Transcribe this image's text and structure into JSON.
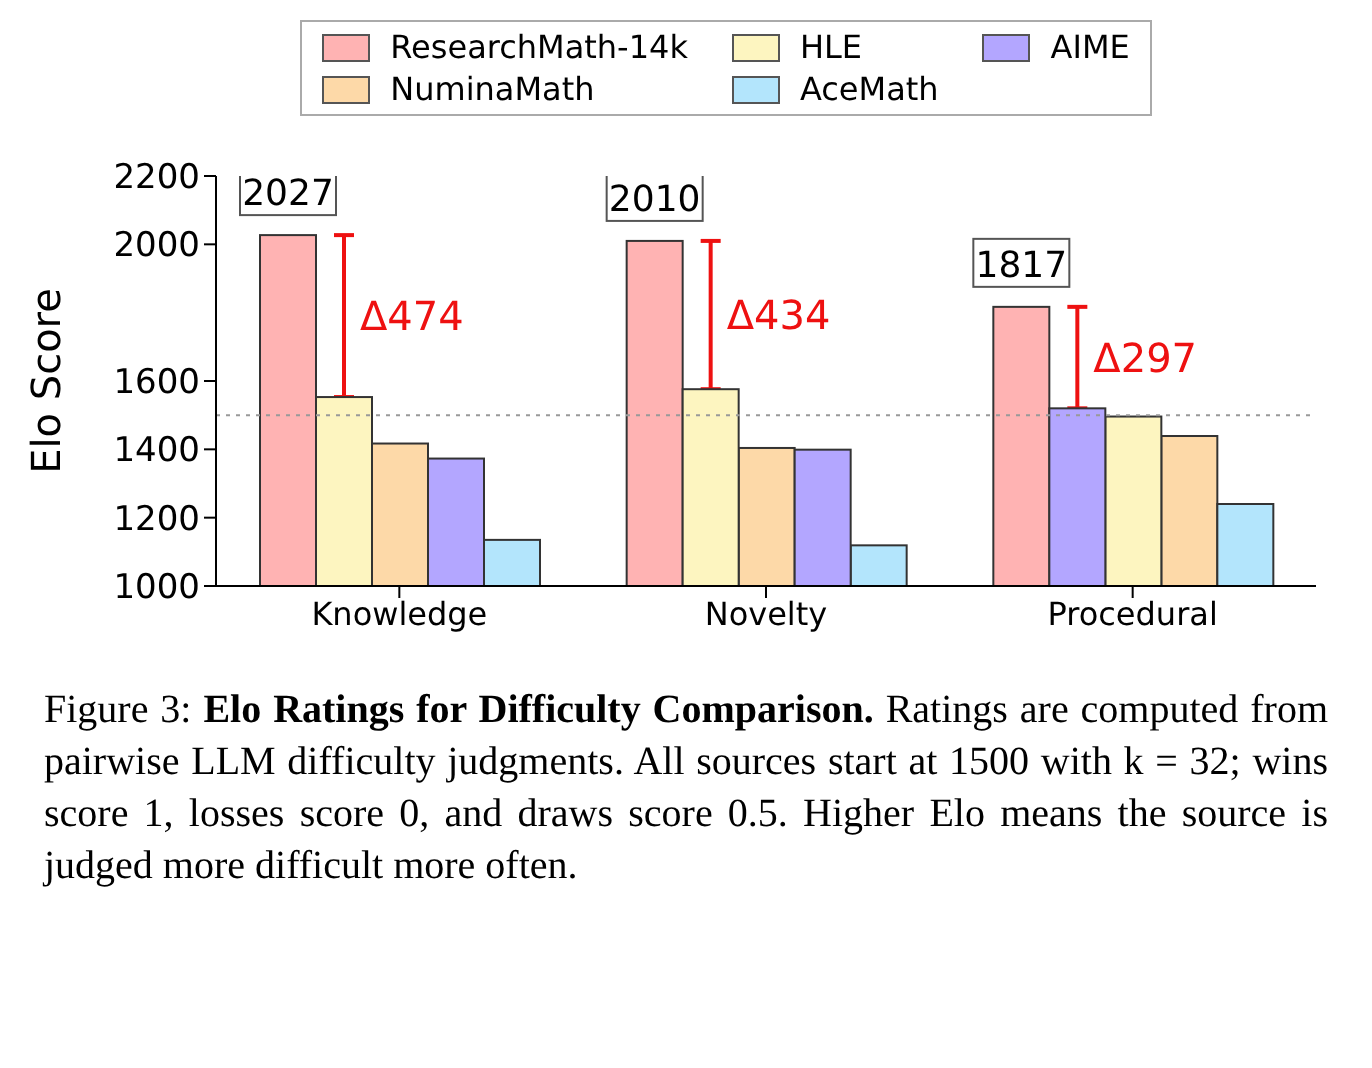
{
  "chart_data": {
    "type": "bar",
    "ylabel": "Elo Score",
    "categories": [
      "Knowledge",
      "Novelty",
      "Procedural"
    ],
    "series": [
      {
        "name": "ResearchMath-14k",
        "color": "#ffb3b3",
        "values": [
          2027,
          2010,
          1817
        ],
        "value_labels": [
          "2027",
          "2010",
          "1817"
        ]
      },
      {
        "name": "NuminaMath",
        "color": "#fdd9a8",
        "values": [
          1417,
          1404,
          1439
        ]
      },
      {
        "name": "HLE",
        "color": "#fdf5c0",
        "values": [
          1553,
          1576,
          1496
        ]
      },
      {
        "name": "AceMath",
        "color": "#b3e5fc",
        "values": [
          1135,
          1119,
          1240
        ]
      },
      {
        "name": "AIME",
        "color": "#b3a6ff",
        "values": [
          1373,
          1399,
          1520
        ]
      }
    ],
    "ylim": [
      1000,
      2200
    ],
    "yticks": [
      1000,
      1200,
      1400,
      1600,
      2000,
      2200
    ],
    "grid": false,
    "legend": "top",
    "ref_lines": [
      {
        "axis": "y",
        "value": 1500,
        "color": "#999999",
        "line_style": "dotted"
      }
    ],
    "annotations": [
      "Δ474",
      "Δ434",
      "Δ297",
      "Figure 3:",
      "Elo Ratings for Difficulty Comparison.",
      "Ratings are computed from pairwise LLM difficulty judgments. All sources start at 1500 with k = 32; wins score 1, losses score 0, and draws score 0.5. Higher Elo means the source is judged more difficult more often."
    ]
  }
}
